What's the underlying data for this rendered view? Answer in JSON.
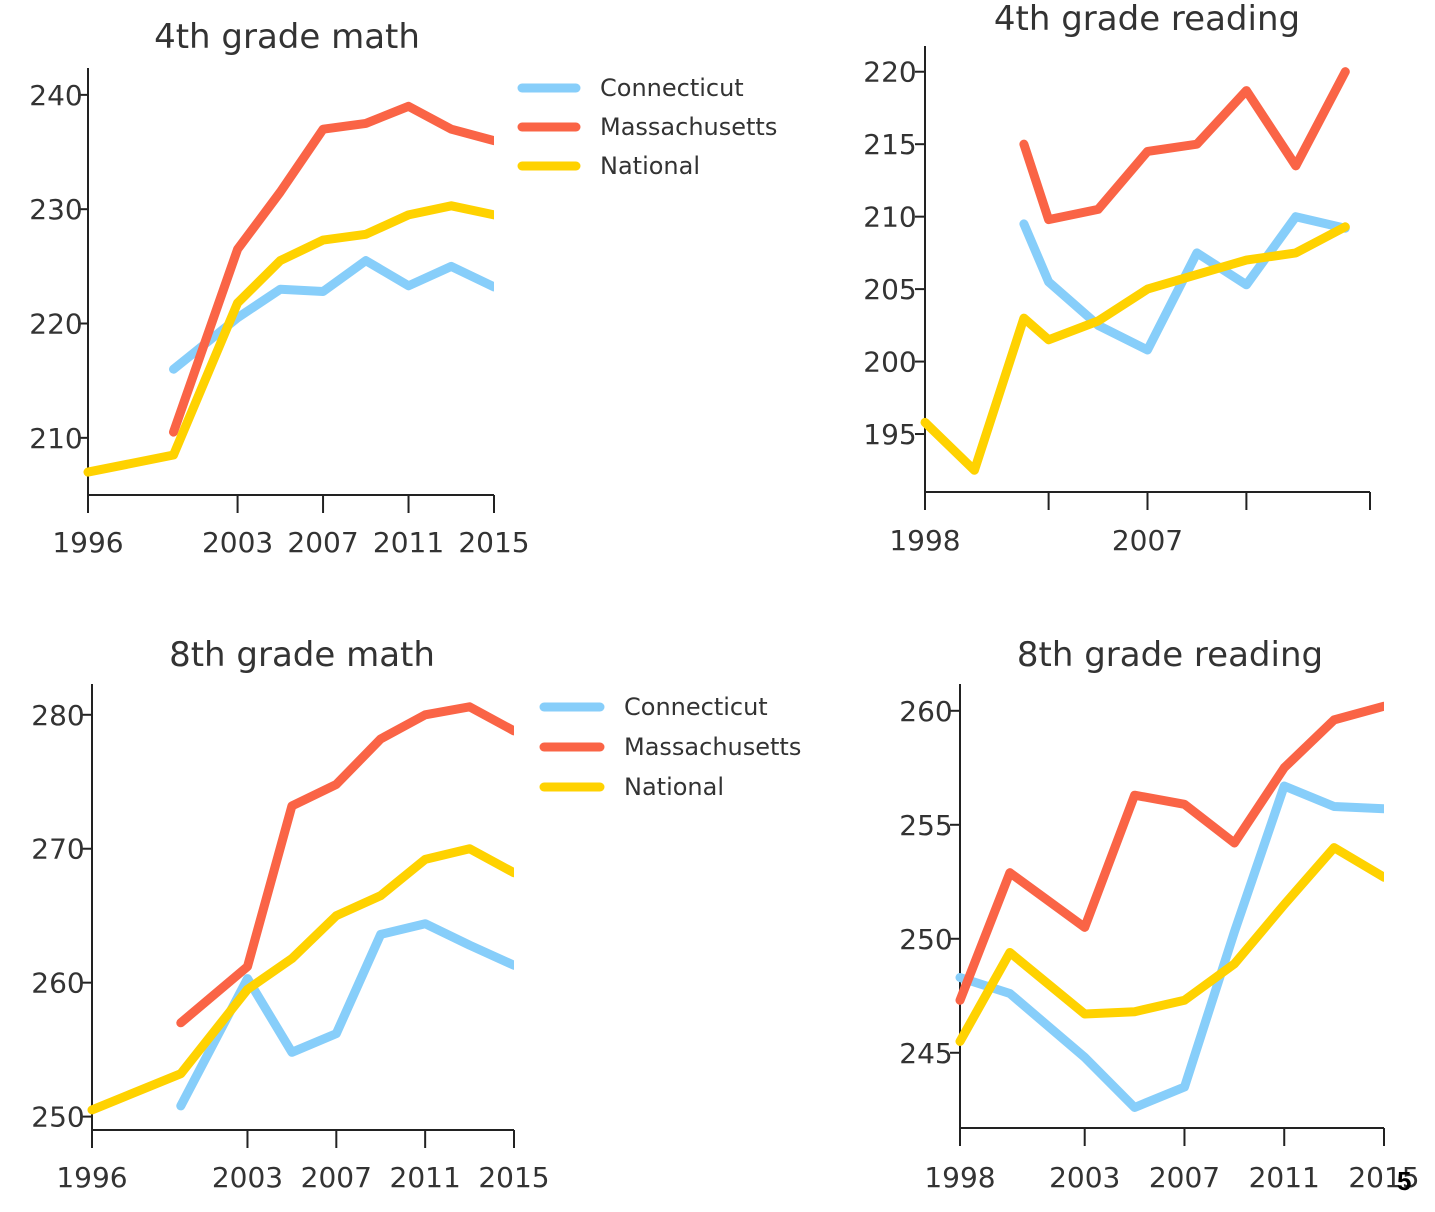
{
  "colors": {
    "connecticut": "#87cefa",
    "massachusetts": "#fa6446",
    "national": "#ffd200"
  },
  "page_number": "5",
  "chart_data": [
    {
      "type": "line",
      "title": "4th grade math",
      "xlim": [
        1996,
        2015
      ],
      "ylim": [
        205,
        242
      ],
      "xticks": [
        "1996",
        "2003",
        "2007",
        "2011",
        "2015"
      ],
      "yticks": [
        "210",
        "220",
        "230",
        "240"
      ],
      "legend": true,
      "series": [
        {
          "name": "Connecticut",
          "color_key": "connecticut",
          "x": [
            2000,
            2003,
            2005,
            2007,
            2009,
            2011,
            2013,
            2015
          ],
          "y": [
            216,
            220.5,
            223,
            222.8,
            225.5,
            223.3,
            225,
            223.2
          ]
        },
        {
          "name": "Massachusetts",
          "color_key": "massachusetts",
          "x": [
            2000,
            2003,
            2005,
            2007,
            2009,
            2011,
            2013,
            2015
          ],
          "y": [
            210.5,
            226.5,
            231.5,
            237,
            237.5,
            239,
            237,
            236
          ]
        },
        {
          "name": "National",
          "color_key": "national",
          "x": [
            1996,
            2000,
            2003,
            2005,
            2007,
            2009,
            2011,
            2013,
            2015
          ],
          "y": [
            207,
            208.5,
            221.8,
            225.5,
            227.3,
            227.8,
            229.5,
            230.3,
            229.5
          ]
        }
      ]
    },
    {
      "type": "line",
      "title": "4th grade reading",
      "xlim": [
        1998,
        2016
      ],
      "ylim": [
        191,
        221.5
      ],
      "xticks": [
        "1998",
        "",
        "2007",
        "",
        ""
      ],
      "xtick_values": [
        1998,
        2003,
        2007,
        2011,
        2016
      ],
      "yticks": [
        "195",
        "200",
        "205",
        "210",
        "215",
        "220"
      ],
      "legend": false,
      "series": [
        {
          "name": "Connecticut",
          "color_key": "connecticut",
          "x": [
            2002,
            2003,
            2005,
            2007,
            2009,
            2011,
            2013,
            2015
          ],
          "y": [
            209.5,
            205.5,
            202.5,
            200.8,
            207.5,
            205.3,
            210,
            209.2
          ]
        },
        {
          "name": "Massachusetts",
          "color_key": "massachusetts",
          "x": [
            2002,
            2003,
            2005,
            2007,
            2009,
            2011,
            2013,
            2015
          ],
          "y": [
            215,
            209.8,
            210.5,
            214.5,
            215,
            218.7,
            213.5,
            220
          ]
        },
        {
          "name": "National",
          "color_key": "national",
          "x": [
            1998,
            2000,
            2002,
            2003,
            2005,
            2007,
            2009,
            2011,
            2013,
            2015
          ],
          "y": [
            195.8,
            192.5,
            203,
            201.5,
            202.8,
            205,
            206,
            207,
            207.5,
            209.3
          ]
        }
      ]
    },
    {
      "type": "line",
      "title": "8th grade math",
      "xlim": [
        1996,
        2015
      ],
      "ylim": [
        249,
        282
      ],
      "xticks": [
        "1996",
        "2003",
        "2007",
        "2011",
        "2015"
      ],
      "yticks": [
        "250",
        "260",
        "270",
        "280"
      ],
      "legend": true,
      "series": [
        {
          "name": "Connecticut",
          "color_key": "connecticut",
          "x": [
            2000,
            2003,
            2005,
            2007,
            2009,
            2011,
            2013,
            2015
          ],
          "y": [
            250.8,
            260.3,
            254.8,
            256.2,
            263.6,
            264.4,
            262.8,
            261.3
          ]
        },
        {
          "name": "Massachusetts",
          "color_key": "massachusetts",
          "x": [
            2000,
            2003,
            2005,
            2007,
            2009,
            2011,
            2013,
            2015
          ],
          "y": [
            257,
            261.2,
            273.2,
            274.8,
            278.2,
            280,
            280.6,
            278.8
          ]
        },
        {
          "name": "National",
          "color_key": "national",
          "x": [
            1996,
            2000,
            2003,
            2005,
            2007,
            2009,
            2011,
            2013,
            2015
          ],
          "y": [
            250.5,
            253.2,
            259.5,
            261.8,
            265,
            266.5,
            269.2,
            270,
            268.2
          ]
        }
      ]
    },
    {
      "type": "line",
      "title": "8th grade reading",
      "xlim": [
        1998,
        2015
      ],
      "ylim": [
        241.7,
        261
      ],
      "xticks": [
        "1998",
        "2003",
        "2007",
        "2011",
        "2015"
      ],
      "yticks": [
        "245",
        "250",
        "255",
        "260"
      ],
      "legend": false,
      "series": [
        {
          "name": "Connecticut",
          "color_key": "connecticut",
          "x": [
            1998,
            2000,
            2003,
            2005,
            2007,
            2009,
            2011,
            2013,
            2015
          ],
          "y": [
            248.3,
            247.6,
            244.8,
            242.6,
            243.5,
            250.3,
            256.7,
            255.8,
            255.7
          ]
        },
        {
          "name": "Massachusetts",
          "color_key": "massachusetts",
          "x": [
            1998,
            2000,
            2003,
            2005,
            2007,
            2009,
            2011,
            2013,
            2015
          ],
          "y": [
            247.3,
            252.9,
            250.5,
            256.3,
            255.9,
            254.2,
            257.5,
            259.6,
            260.2
          ]
        },
        {
          "name": "National",
          "color_key": "national",
          "x": [
            1998,
            2000,
            2003,
            2005,
            2007,
            2009,
            2011,
            2013,
            2015
          ],
          "y": [
            245.5,
            249.4,
            246.7,
            246.8,
            247.3,
            248.9,
            251.5,
            254,
            252.7
          ]
        }
      ]
    }
  ]
}
